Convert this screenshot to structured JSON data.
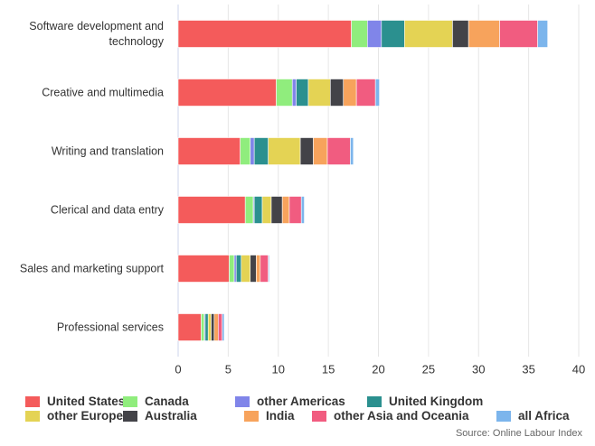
{
  "chart_data": {
    "type": "stacked-bar-horizontal",
    "categories": [
      "Software development and technology",
      "Creative and multimedia",
      "Writing and translation",
      "Clerical and data entry",
      "Sales and marketing support",
      "Professional services"
    ],
    "series": [
      {
        "name": "United States",
        "color": "#f45b5b",
        "values": [
          17.3,
          9.8,
          6.2,
          6.7,
          5.1,
          2.3
        ]
      },
      {
        "name": "Canada",
        "color": "#90ed7d",
        "values": [
          1.6,
          1.6,
          1.0,
          0.8,
          0.5,
          0.3
        ]
      },
      {
        "name": "other Americas",
        "color": "#8085e9",
        "values": [
          1.4,
          0.4,
          0.4,
          0.1,
          0.2,
          0.1
        ]
      },
      {
        "name": "United Kingdom",
        "color": "#2b908f",
        "values": [
          2.3,
          1.2,
          1.4,
          0.8,
          0.5,
          0.3
        ]
      },
      {
        "name": "other Europe",
        "color": "#e4d354",
        "values": [
          4.8,
          2.2,
          3.2,
          0.9,
          0.9,
          0.3
        ]
      },
      {
        "name": "Australia",
        "color": "#434348",
        "values": [
          1.6,
          1.3,
          1.3,
          1.1,
          0.6,
          0.3
        ]
      },
      {
        "name": "India",
        "color": "#f7a35c",
        "values": [
          3.1,
          1.3,
          1.4,
          0.7,
          0.4,
          0.4
        ]
      },
      {
        "name": "other Asia and Oceania",
        "color": "#f15c80",
        "values": [
          3.8,
          1.9,
          2.3,
          1.2,
          0.8,
          0.4
        ]
      },
      {
        "name": "all Africa",
        "color": "#7cb5ec",
        "values": [
          1.0,
          0.4,
          0.3,
          0.3,
          0.1,
          0.2
        ]
      }
    ],
    "xlim": [
      0,
      40
    ],
    "xticks": [
      0,
      5,
      10,
      15,
      20,
      25,
      30,
      35,
      40
    ],
    "grid": true,
    "legend": "bottom",
    "source": "Source: Online Labour Index"
  }
}
